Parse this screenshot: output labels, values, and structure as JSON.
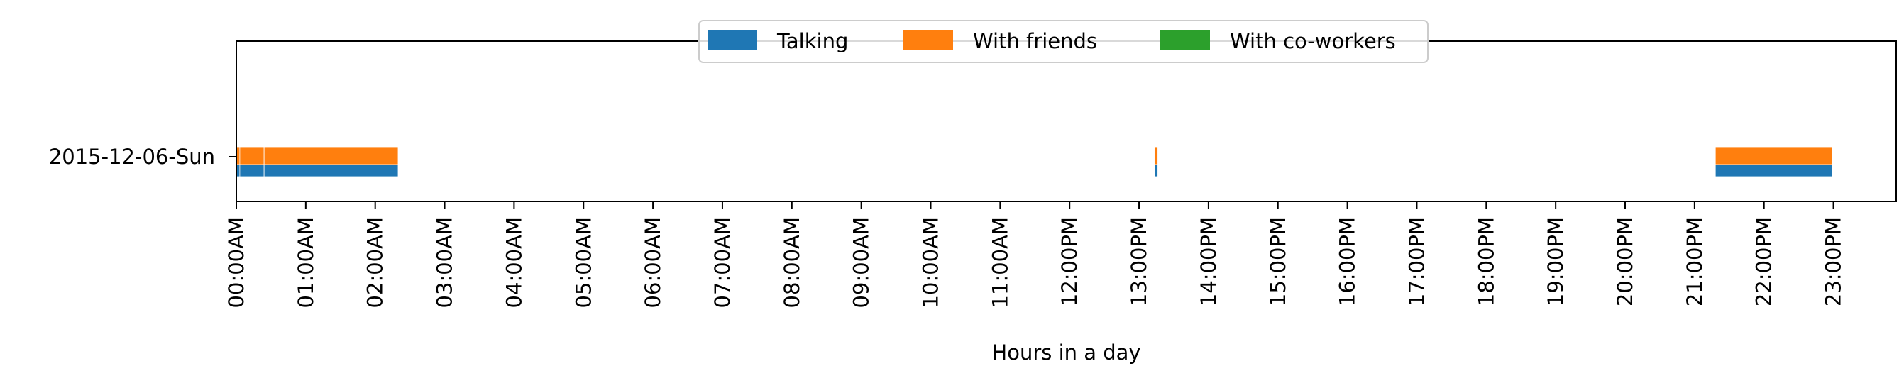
{
  "chart_data": {
    "type": "timeline",
    "xlabel": "Hours in a day",
    "xlim": [
      0,
      24
    ],
    "xticks": [
      {
        "value": 0,
        "label": "00:00AM"
      },
      {
        "value": 1,
        "label": "01:00AM"
      },
      {
        "value": 2,
        "label": "02:00AM"
      },
      {
        "value": 3,
        "label": "03:00AM"
      },
      {
        "value": 4,
        "label": "04:00AM"
      },
      {
        "value": 5,
        "label": "05:00AM"
      },
      {
        "value": 6,
        "label": "06:00AM"
      },
      {
        "value": 7,
        "label": "07:00AM"
      },
      {
        "value": 8,
        "label": "08:00AM"
      },
      {
        "value": 9,
        "label": "09:00AM"
      },
      {
        "value": 10,
        "label": "10:00AM"
      },
      {
        "value": 11,
        "label": "11:00AM"
      },
      {
        "value": 12,
        "label": "12:00PM"
      },
      {
        "value": 13,
        "label": "13:00PM"
      },
      {
        "value": 14,
        "label": "14:00PM"
      },
      {
        "value": 15,
        "label": "15:00PM"
      },
      {
        "value": 16,
        "label": "16:00PM"
      },
      {
        "value": 17,
        "label": "17:00PM"
      },
      {
        "value": 18,
        "label": "18:00PM"
      },
      {
        "value": 19,
        "label": "19:00PM"
      },
      {
        "value": 20,
        "label": "20:00PM"
      },
      {
        "value": 21,
        "label": "21:00PM"
      },
      {
        "value": 22,
        "label": "22:00PM"
      },
      {
        "value": 23,
        "label": "23:00PM"
      }
    ],
    "categories": [
      "2015-12-06-Sun"
    ],
    "grid": false,
    "legend_position": "top-center",
    "series": [
      {
        "name": "Talking",
        "color": "#1f77b4",
        "lane": "lower",
        "intervals": [
          [
            0.0,
            0.05
          ],
          [
            0.05,
            0.4
          ],
          [
            0.4,
            2.33
          ],
          [
            13.23,
            13.27
          ],
          [
            21.3,
            22.98
          ]
        ]
      },
      {
        "name": "With friends",
        "color": "#ff7f0e",
        "lane": "upper",
        "intervals": [
          [
            0.0,
            0.05
          ],
          [
            0.05,
            0.4
          ],
          [
            0.4,
            2.33
          ],
          [
            13.22,
            13.27
          ],
          [
            21.3,
            22.98
          ]
        ]
      },
      {
        "name": "With co-workers",
        "color": "#2ca02c",
        "lane": "upper",
        "intervals": []
      }
    ]
  }
}
